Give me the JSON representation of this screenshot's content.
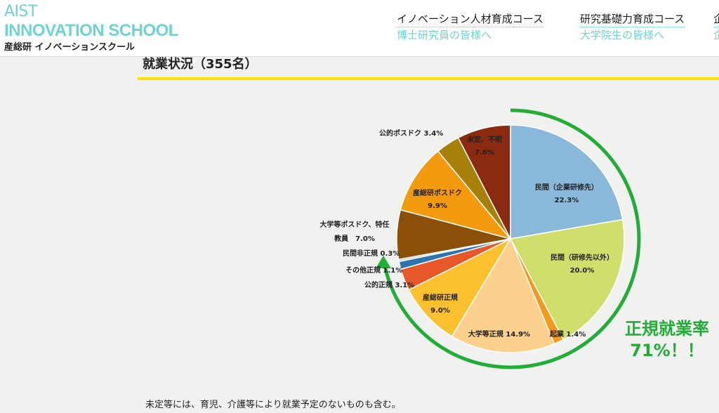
{
  "header": {
    "logo_line1": "AIST",
    "logo_line2": "INNOVATION SCHOOL",
    "logo_sub": "産総研 イノベーションスクール",
    "nav": [
      {
        "title": "イノベーション人材育成コース",
        "sub": "博士研究員の皆様へ"
      },
      {
        "title": "研究基礎力育成コース",
        "sub": "大学院生の皆様へ"
      },
      {
        "title": "企",
        "sub": "企"
      }
    ]
  },
  "section_title": "就業状況（355名）",
  "footnote": "未定等には、育児、介護等により就業予定のないものも含む。",
  "highlight": {
    "line1": "正規就業率",
    "line2": "71%！！",
    "color": "#22ad38"
  },
  "chart_data": {
    "type": "pie",
    "start_angle_deg": 0,
    "direction": "clockwise",
    "slices": [
      {
        "label": "民間（企業研修先）",
        "value": 22.3,
        "display": "22.3%",
        "color": "#8ab8d8"
      },
      {
        "label": "民間（研修先以外）",
        "value": 20.0,
        "display": "20.0%",
        "color": "#d0df6b"
      },
      {
        "label": "起業",
        "value": 1.4,
        "display": "1.4%",
        "color": "#f39a1e"
      },
      {
        "label": "大学等正規",
        "value": 14.9,
        "display": "14.9%",
        "color": "#fdd08e"
      },
      {
        "label": "産総研正規",
        "value": 9.0,
        "display": "9.0%",
        "color": "#fbc02d"
      },
      {
        "label": "公的正規",
        "value": 3.1,
        "display": "3.1%",
        "color": "#e6582a"
      },
      {
        "label": "その他正規",
        "value": 1.1,
        "display": "1.1%",
        "color": "#2b74b0"
      },
      {
        "label": "民間非正規",
        "value": 0.3,
        "display": "0.3%",
        "color": "#c7c7c7"
      },
      {
        "label": "大学等ポスドク、特任教員",
        "value": 7.0,
        "display": "7.0%",
        "color": "#8b5008"
      },
      {
        "label": "産総研ポスドク",
        "value": 9.9,
        "display": "9.9%",
        "color": "#f39a0f"
      },
      {
        "label": "公的ポスドク",
        "value": 3.4,
        "display": "3.4%",
        "color": "#a78009"
      },
      {
        "label": "未定、不明",
        "value": 7.6,
        "display": "7.6%",
        "color": "#8a2b11"
      }
    ]
  }
}
